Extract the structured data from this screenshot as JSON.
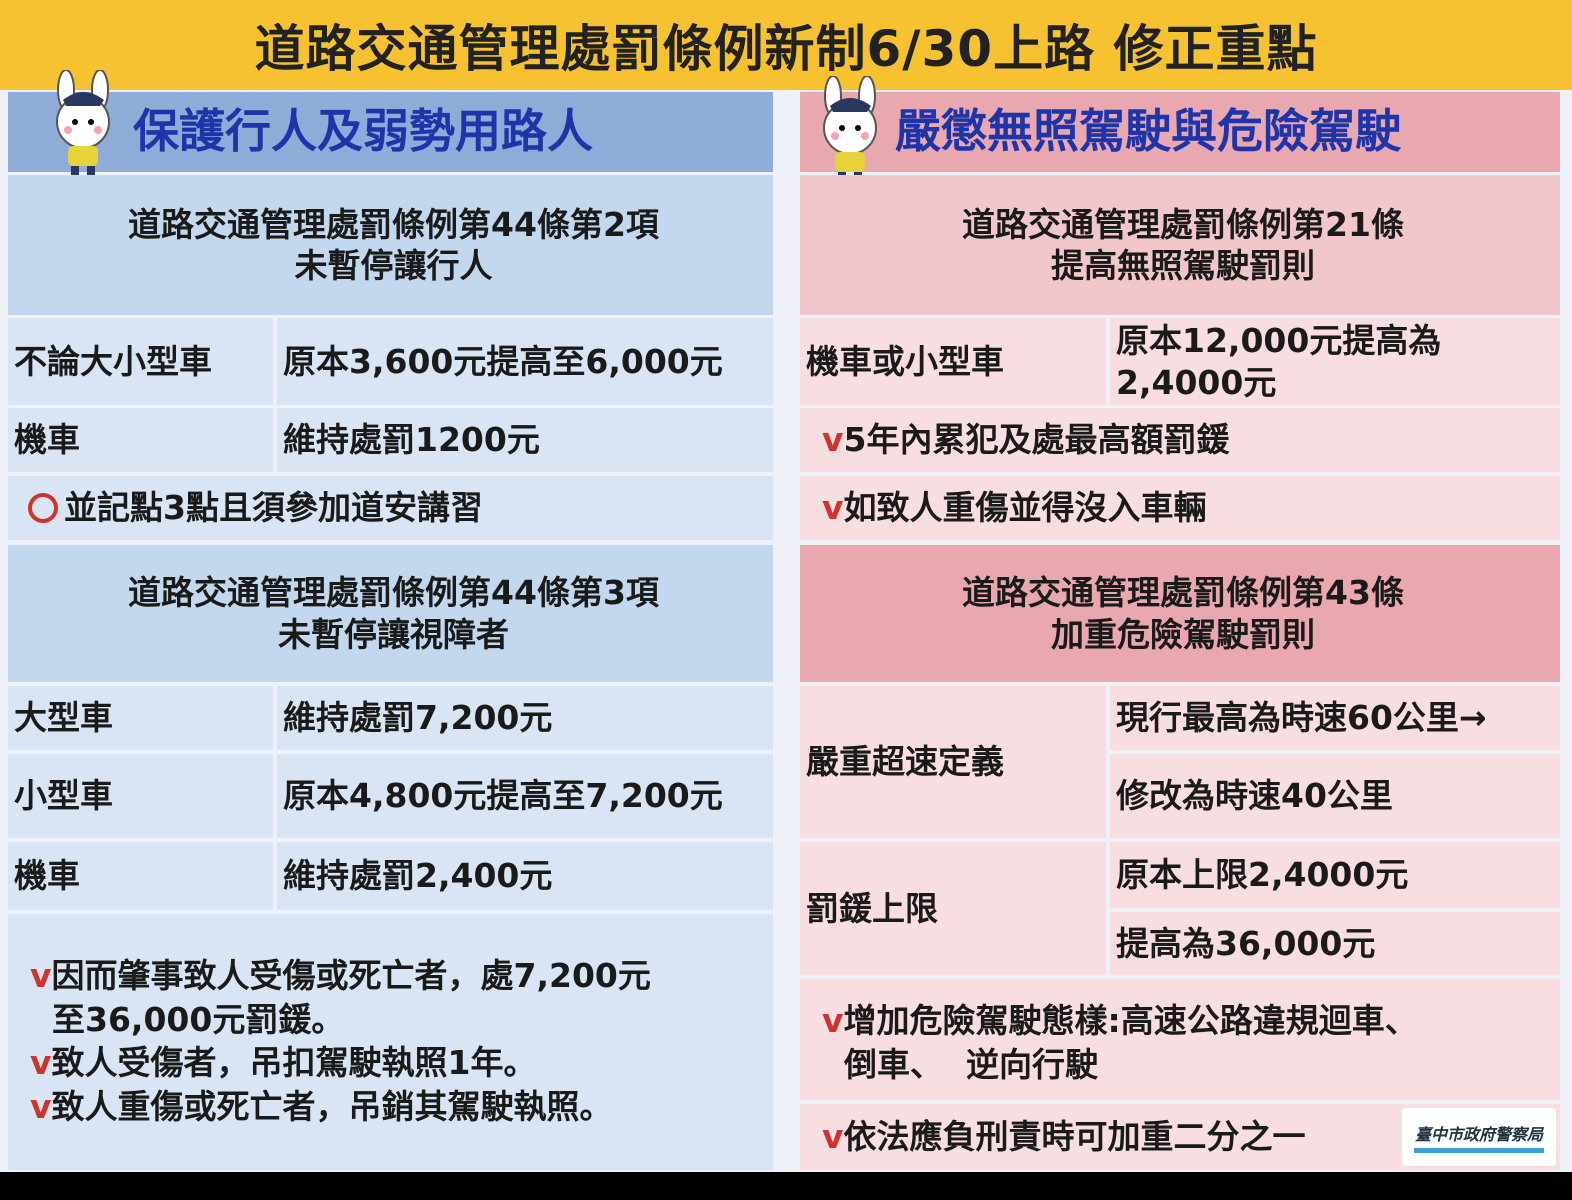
{
  "title": "道路交通管理處罰條例新制6/30上路  修正重點",
  "left": {
    "heading": "保護行人及弱勢用路人",
    "section1": {
      "line1": "道路交通管理處罰條例第44條第2項",
      "line2": "未暫停讓行人"
    },
    "rows1": [
      {
        "label": "不論大小型車",
        "value": "原本3,600元提高至6,000元"
      },
      {
        "label": "機車",
        "value": "維持處罰1200元"
      }
    ],
    "note1": "並記點3點且須參加道安講習",
    "section2": {
      "line1": "道路交通管理處罰條例第44條第3項",
      "line2": "未暫停讓視障者"
    },
    "rows2": [
      {
        "label": "大型車",
        "value": "維持處罰7,200元"
      },
      {
        "label": "小型車",
        "value": "原本4,800元提高至7,200元"
      },
      {
        "label": "機車",
        "value": "維持處罰2,400元"
      }
    ],
    "notes": [
      {
        "mark": "v",
        "text": "因而肇事致人受傷或死亡者，處7,200元",
        "cont": "至36,000元罰鍰。"
      },
      {
        "mark": "v",
        "text": "致人受傷者，吊扣駕駛執照1年。"
      },
      {
        "mark": "v",
        "text": "致人重傷或死亡者，吊銷其駕駛執照。"
      }
    ]
  },
  "right": {
    "heading": "嚴懲無照駕駛與危險駕駛",
    "section1": {
      "line1": "道路交通管理處罰條例第21條",
      "line2": "提高無照駕駛罰則"
    },
    "row1": {
      "label": "機車或小型車",
      "value1": "原本12,000元提高為",
      "value2": "2,4000元"
    },
    "checks1": [
      {
        "mark": "v",
        "text": "5年內累犯及處最高額罰鍰"
      },
      {
        "mark": "v",
        "text": "如致人重傷並得沒入車輛"
      }
    ],
    "section2": {
      "line1": "道路交通管理處罰條例第43條",
      "line2": "加重危險駕駛罰則"
    },
    "speed": {
      "label": "嚴重超速定義",
      "value1": "現行最高為時速60公里→",
      "value2": "修改為時速40公里"
    },
    "fine": {
      "label": "罰鍰上限",
      "value1": "原本上限2,4000元",
      "value2": "提高為36,000元"
    },
    "notes": [
      {
        "mark": "v",
        "text": "增加危險駕駛態樣:高速公路違規迴車、",
        "cont": "倒車、  逆向行駛"
      },
      {
        "mark": "v",
        "text": "依法應負刑責時可加重二分之一"
      }
    ],
    "logo": "臺中市政府警察局"
  },
  "colors": {
    "banner": "#f6c232",
    "left_band": "#8fabd8",
    "right_band": "#e9a8b0",
    "heading_text": "#1d35a8",
    "check_mark": "#d0322c"
  }
}
